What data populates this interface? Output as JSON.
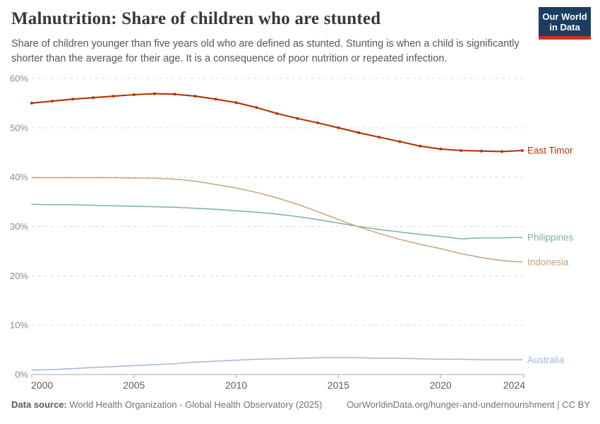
{
  "header": {
    "title": "Malnutrition: Share of children who are stunted",
    "subtitle": {
      "line1": "Share of children younger than five years old who are defined as stunted. Stunting is when a child is significantly",
      "line2": "shorter than the average for their age. It is a consequence of poor nutrition or repeated infection."
    },
    "logo": {
      "line1": "Our World",
      "line2": "in Data",
      "bg_color": "#1d3d63",
      "bar_color": "#d12e21"
    }
  },
  "chart_data": {
    "type": "line",
    "title": "Malnutrition: Share of children who are stunted",
    "x": [
      2000,
      2001,
      2002,
      2003,
      2004,
      2005,
      2006,
      2007,
      2008,
      2009,
      2010,
      2011,
      2012,
      2013,
      2014,
      2015,
      2016,
      2017,
      2018,
      2019,
      2020,
      2021,
      2022,
      2023,
      2024
    ],
    "series": [
      {
        "name": "East Timor",
        "color": "#b13507",
        "markers": true,
        "values": [
          55.0,
          55.4,
          55.8,
          56.1,
          56.4,
          56.7,
          56.9,
          56.8,
          56.4,
          55.8,
          55.1,
          54.1,
          52.9,
          51.9,
          51.0,
          50.0,
          49.0,
          48.1,
          47.2,
          46.3,
          45.7,
          45.4,
          45.3,
          45.2,
          45.4
        ]
      },
      {
        "name": "Philippines",
        "color": "#7cb1a2",
        "markers": false,
        "values": [
          34.5,
          34.4,
          34.4,
          34.3,
          34.2,
          34.1,
          34.0,
          33.9,
          33.7,
          33.5,
          33.2,
          32.9,
          32.5,
          32.0,
          31.4,
          30.7,
          30.0,
          29.4,
          28.9,
          28.4,
          28.0,
          27.5,
          27.7,
          27.7,
          27.8
        ]
      },
      {
        "name": "Indonesia",
        "color": "#c7a27d",
        "markers": false,
        "values": [
          39.9,
          39.9,
          39.9,
          39.9,
          39.9,
          39.8,
          39.8,
          39.6,
          39.2,
          38.5,
          37.8,
          36.9,
          35.8,
          34.5,
          33.0,
          31.4,
          29.9,
          28.6,
          27.4,
          26.4,
          25.5,
          24.5,
          23.7,
          23.1,
          22.8
        ]
      },
      {
        "name": "Australia",
        "color": "#a2b6d4",
        "markers": false,
        "values": [
          0.9,
          1.0,
          1.2,
          1.4,
          1.6,
          1.8,
          2.0,
          2.2,
          2.5,
          2.7,
          2.9,
          3.1,
          3.2,
          3.3,
          3.4,
          3.4,
          3.4,
          3.3,
          3.3,
          3.2,
          3.1,
          3.1,
          3.0,
          3.0,
          3.0
        ]
      }
    ],
    "ylim": [
      0,
      60
    ],
    "yticks": [
      0,
      10,
      20,
      30,
      40,
      50,
      60
    ],
    "ytick_suffix": "%",
    "xticks": [
      2000,
      2005,
      2010,
      2015,
      2020,
      2024
    ],
    "grid": "horizontal-dashed",
    "legend_position": "right-of-line-end",
    "grid_color": "#d9d9d9",
    "axis_color": "#a8a8a8"
  },
  "footer": {
    "source_label": "Data source:",
    "source_text": " World Health Organization - Global Health Observatory (2025)",
    "link_text": "OurWorldinData.org/hunger-and-undernourishment | CC BY"
  }
}
